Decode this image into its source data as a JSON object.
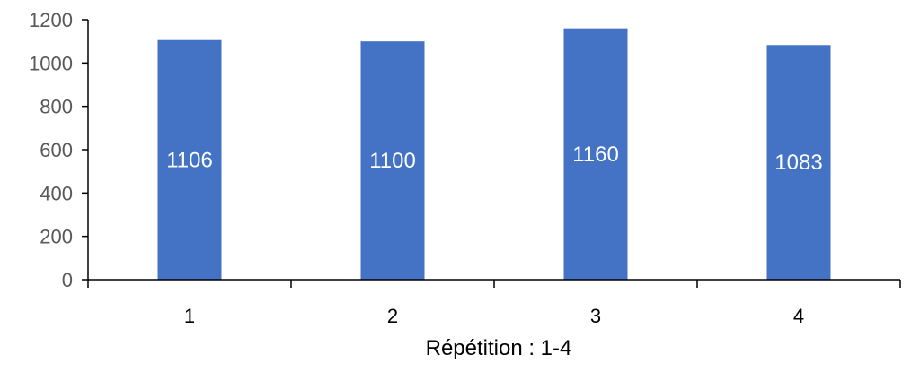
{
  "chart_data": {
    "type": "bar",
    "categories": [
      "1",
      "2",
      "3",
      "4"
    ],
    "values": [
      1106,
      1100,
      1160,
      1083
    ],
    "data_labels": [
      "1106",
      "1100",
      "1160",
      "1083"
    ],
    "title": "",
    "xlabel": "Répétition : 1-4",
    "ylabel": "",
    "ylim": [
      0,
      1200
    ],
    "yticks": [
      0,
      200,
      400,
      600,
      800,
      1000,
      1200
    ],
    "ytick_labels": [
      "0",
      "200",
      "400",
      "600",
      "800",
      "1000",
      "1200"
    ],
    "grid": false,
    "legend": "none",
    "colors": {
      "bar": "#4472C4",
      "axis": "#000000",
      "ytick_text": "#595959",
      "data_label_text": "#ffffff"
    }
  }
}
